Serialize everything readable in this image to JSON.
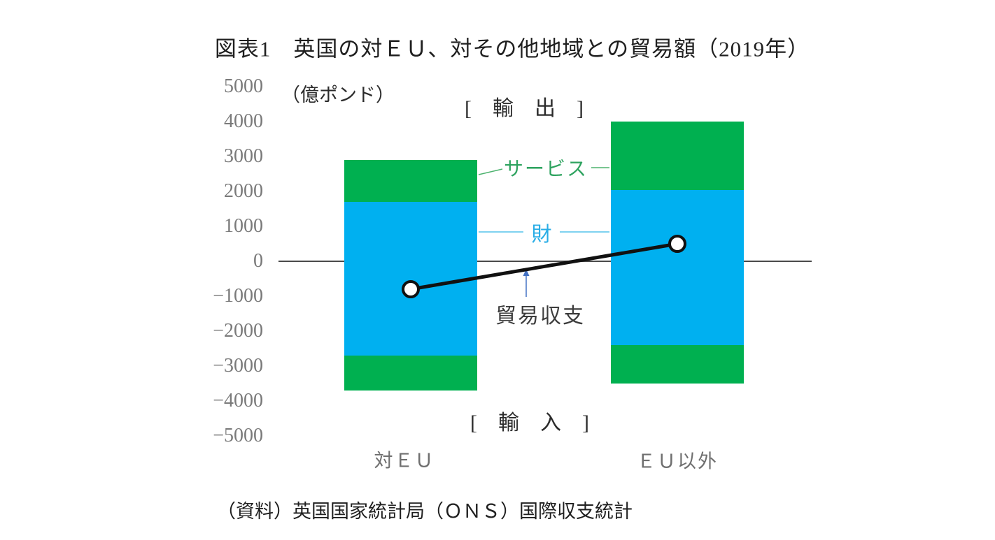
{
  "title": "図表1　英国の対ＥＵ、対その他地域との貿易額（2019年）",
  "unit_label": "（億ポンド）",
  "export_label": "[　輸　出　]",
  "import_label": "[　輸　入　]",
  "series_labels": {
    "services": "サービス",
    "goods": "財",
    "balance": "貿易収支"
  },
  "source": "（資料）英国国家統計局（ＯＮＳ）国際収支統計",
  "colors": {
    "goods": "#00b0f0",
    "services": "#00b050",
    "balance_line": "#111111",
    "marker_fill": "#ffffff",
    "axis_line": "#4a4a4a",
    "tick_text": "#7a7a7a",
    "services_label_text": "#2ea35f",
    "goods_label_text": "#29ade6",
    "balance_arrow": "#4472c4"
  },
  "chart_data": {
    "type": "bar",
    "stacked": true,
    "categories": [
      "対ＥＵ",
      "ＥＵ以外"
    ],
    "series": [
      {
        "name": "輸出・財",
        "role": "export_goods",
        "values": [
          1700,
          2050
        ]
      },
      {
        "name": "輸出・サービス",
        "role": "export_services",
        "values": [
          1200,
          1950
        ]
      },
      {
        "name": "輸入・財",
        "role": "import_goods",
        "values": [
          -2700,
          -2400
        ]
      },
      {
        "name": "輸入・サービス",
        "role": "import_services",
        "values": [
          -1000,
          -1100
        ]
      },
      {
        "name": "貿易収支",
        "type": "line",
        "role": "trade_balance",
        "values": [
          -800,
          500
        ]
      }
    ],
    "title": "英国の対ＥＵ、対その他地域との貿易額（2019年）",
    "xlabel": "",
    "ylabel": "億ポンド",
    "ylim": [
      -5000,
      5000
    ],
    "grid": false,
    "legend_position": "inline-annotations",
    "yticks": [
      5000,
      4000,
      3000,
      2000,
      1000,
      0,
      -1000,
      -2000,
      -3000,
      -4000,
      -5000
    ],
    "ytick_labels": [
      "5000",
      "4000",
      "3000",
      "2000",
      "1000",
      "0",
      "−1000",
      "−2000",
      "−3000",
      "−4000",
      "−5000"
    ]
  }
}
